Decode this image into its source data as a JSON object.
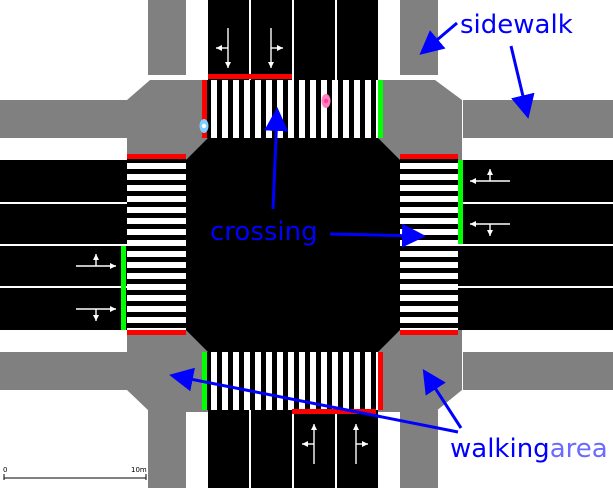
{
  "labels": {
    "sidewalk": "sidewalk",
    "crossing": "crossing",
    "walkingarea_walking": "walking",
    "walkingarea_area": "area"
  },
  "scale": {
    "start": "0",
    "end": "10m"
  },
  "colors": {
    "road": "#000000",
    "sidewalk": "#808080",
    "stripe": "#ffffff",
    "signal_red": "#ff0000",
    "signal_green": "#00ff00",
    "label_blue": "#0000ff",
    "label_light_blue": "#6b6bff",
    "pedestrian_pink": "#ff7fbf",
    "pedestrian_cyan": "#7fcfff"
  },
  "icons": [
    "lane-arrow-icon",
    "pedestrian-icon"
  ]
}
